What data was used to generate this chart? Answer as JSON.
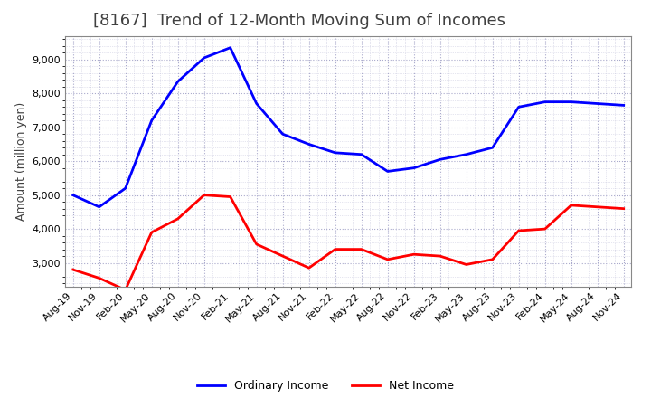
{
  "title": "[8167]  Trend of 12-Month Moving Sum of Incomes",
  "ylabel": "Amount (million yen)",
  "x_labels": [
    "Aug-19",
    "Nov-19",
    "Feb-20",
    "May-20",
    "Aug-20",
    "Nov-20",
    "Feb-21",
    "May-21",
    "Aug-21",
    "Nov-21",
    "Feb-22",
    "May-22",
    "Aug-22",
    "Nov-22",
    "Feb-23",
    "May-23",
    "Aug-23",
    "Nov-23",
    "Feb-24",
    "May-24",
    "Aug-24",
    "Nov-24"
  ],
  "ordinary_income": [
    5000,
    4650,
    5200,
    7200,
    8350,
    9050,
    9350,
    7700,
    6800,
    6500,
    6250,
    6200,
    5700,
    5800,
    6050,
    6200,
    6400,
    7600,
    7750,
    7750,
    7700,
    7650
  ],
  "net_income": [
    2800,
    2550,
    2200,
    3900,
    4300,
    5000,
    4950,
    3550,
    3200,
    2850,
    3400,
    3400,
    3100,
    3250,
    3200,
    2950,
    3100,
    3950,
    4000,
    4700,
    4650,
    4600
  ],
  "ordinary_color": "#0000FF",
  "net_color": "#FF0000",
  "background_color": "#FFFFFF",
  "plot_bg_color": "#FFFFFF",
  "grid_color": "#AAAACC",
  "title_color": "#404040",
  "ylim_min": 2300,
  "ylim_max": 9700,
  "yticks": [
    3000,
    4000,
    5000,
    6000,
    7000,
    8000,
    9000
  ],
  "title_fontsize": 13,
  "tick_fontsize": 8,
  "legend_labels": [
    "Ordinary Income",
    "Net Income"
  ]
}
